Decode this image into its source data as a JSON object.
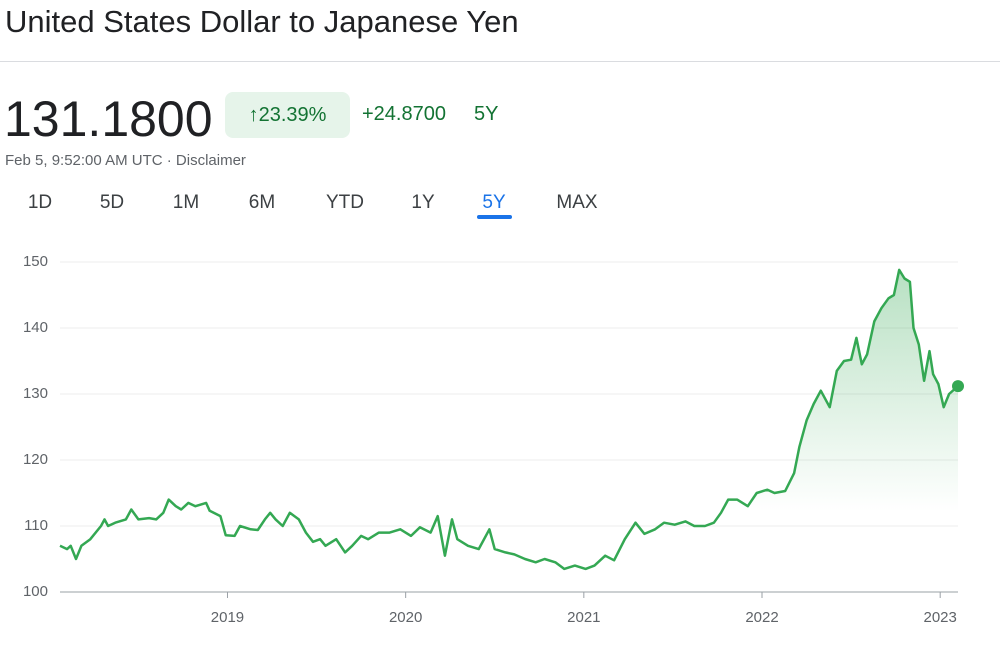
{
  "header": {
    "title": "United States Dollar to Japanese Yen"
  },
  "quote": {
    "price": "131.1800",
    "change_percent": "↑23.39%",
    "change": "+24.8700",
    "period": "5Y",
    "timestamp": "Feb 5, 9:52:00 AM UTC",
    "separator": "·",
    "disclaimer": "Disclaimer"
  },
  "tabs": {
    "items": [
      "1D",
      "5D",
      "1M",
      "6M",
      "YTD",
      "1Y",
      "5Y",
      "MAX"
    ],
    "selected": 6
  },
  "chart_data": {
    "type": "line",
    "color": "#34a853",
    "grid": true,
    "x": [
      2018.06,
      2018.1,
      2018.12,
      2018.15,
      2018.18,
      2018.23,
      2018.29,
      2018.31,
      2018.33,
      2018.37,
      2018.43,
      2018.46,
      2018.5,
      2018.56,
      2018.6,
      2018.64,
      2018.67,
      2018.71,
      2018.74,
      2018.78,
      2018.82,
      2018.88,
      2018.9,
      2018.96,
      2018.99,
      2019.04,
      2019.07,
      2019.13,
      2019.17,
      2019.21,
      2019.24,
      2019.27,
      2019.31,
      2019.35,
      2019.4,
      2019.44,
      2019.48,
      2019.52,
      2019.55,
      2019.61,
      2019.66,
      2019.7,
      2019.75,
      2019.79,
      2019.85,
      2019.91,
      2019.97,
      2020.03,
      2020.08,
      2020.14,
      2020.18,
      2020.22,
      2020.26,
      2020.29,
      2020.35,
      2020.41,
      2020.47,
      2020.5,
      2020.56,
      2020.61,
      2020.67,
      2020.73,
      2020.78,
      2020.84,
      2020.89,
      2020.95,
      2021.01,
      2021.06,
      2021.12,
      2021.17,
      2021.23,
      2021.29,
      2021.34,
      2021.4,
      2021.45,
      2021.51,
      2021.57,
      2021.62,
      2021.68,
      2021.73,
      2021.77,
      2021.81,
      2021.86,
      2021.92,
      2021.97,
      2022.03,
      2022.07,
      2022.13,
      2022.18,
      2022.21,
      2022.25,
      2022.29,
      2022.33,
      2022.38,
      2022.42,
      2022.46,
      2022.5,
      2022.53,
      2022.56,
      2022.59,
      2022.63,
      2022.67,
      2022.71,
      2022.74,
      2022.77,
      2022.8,
      2022.83,
      2022.85,
      2022.88,
      2022.91,
      2022.94,
      2022.96,
      2022.99,
      2023.02,
      2023.05,
      2023.1
    ],
    "values": [
      107,
      106.5,
      107,
      105,
      107,
      108,
      110,
      111,
      110,
      110.5,
      111,
      112.5,
      111,
      111.2,
      111,
      112,
      114,
      113,
      112.5,
      113.5,
      113,
      113.5,
      112.3,
      111.5,
      108.6,
      108.5,
      110,
      109.5,
      109.4,
      111,
      112,
      111,
      110,
      112,
      111,
      109,
      107.6,
      108,
      107,
      108,
      106,
      107,
      108.5,
      108,
      109,
      109,
      109.5,
      108.5,
      109.8,
      109,
      111.5,
      105.5,
      111,
      108,
      107,
      106.5,
      109.5,
      106.5,
      106,
      105.7,
      105,
      104.5,
      105,
      104.5,
      103.5,
      104,
      103.5,
      104,
      105.5,
      104.8,
      108,
      110.5,
      108.8,
      109.5,
      110.5,
      110.2,
      110.7,
      110,
      110,
      110.5,
      112,
      114,
      114,
      113,
      115,
      115.5,
      115,
      115.3,
      118,
      122,
      126,
      128.5,
      130.5,
      128,
      133.5,
      135,
      135.2,
      138.5,
      134.5,
      136,
      141,
      143,
      144.5,
      145,
      148.8,
      147.5,
      147,
      140,
      137.5,
      132,
      136.5,
      133,
      131.5,
      128,
      130,
      131.2
    ],
    "xlim": [
      2018.06,
      2023.1
    ],
    "xticks": [
      2019,
      2020,
      2021,
      2022,
      2023
    ],
    "ylim": [
      100,
      150
    ],
    "yticks": [
      100,
      110,
      120,
      130,
      140,
      150
    ]
  }
}
